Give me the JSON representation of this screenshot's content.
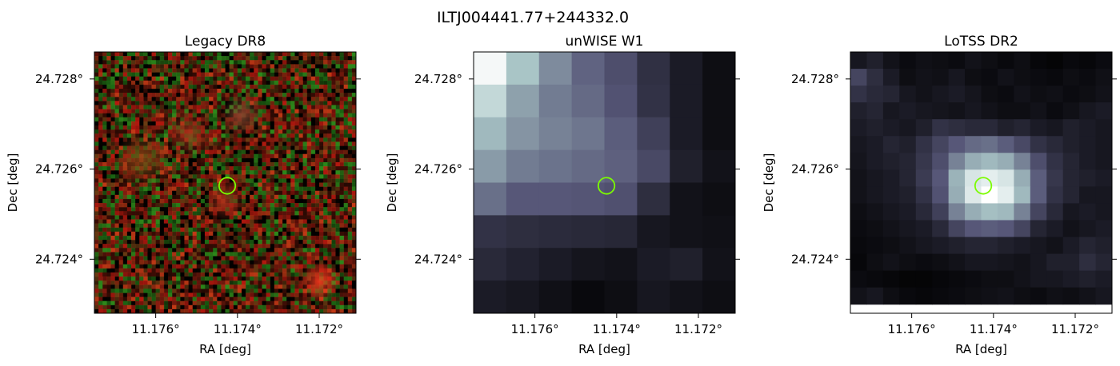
{
  "figure": {
    "suptitle": "ILTJ004441.77+244332.0"
  },
  "chart_data": [
    {
      "type": "heatmap",
      "title": "Legacy DR8",
      "xlabel": "RA [deg]",
      "ylabel": "Dec [deg]",
      "x_ticks": [
        11.176,
        11.174,
        11.172
      ],
      "x_tick_labels": [
        "11.176°",
        "11.174°",
        "11.172°"
      ],
      "y_ticks": [
        24.728,
        24.726,
        24.724
      ],
      "y_tick_labels": [
        "24.728°",
        "24.726°",
        "24.724°"
      ],
      "xlim": [
        11.1775,
        11.1711
      ],
      "ylim": [
        24.7228,
        24.7286
      ],
      "colormap": "rgb composite",
      "image": {
        "kind": "noise",
        "grid": [
          64,
          64
        ],
        "background": "#0a0500",
        "pixel_colors": [
          "#b5190f",
          "#8a1d10",
          "#2e8a1b",
          "#1d6d14",
          "#3f0d05",
          "#000000",
          "#6b3b12",
          "#c43a16"
        ],
        "blobs": [
          {
            "x": 11.1763,
            "y": 24.7262,
            "radius": 0.0007,
            "color": "#8a4a16"
          },
          {
            "x": 11.1752,
            "y": 24.7268,
            "radius": 0.0006,
            "color": "#a3321a"
          },
          {
            "x": 11.1739,
            "y": 24.7272,
            "radius": 0.0005,
            "color": "#8a4a30"
          },
          {
            "x": 11.1743,
            "y": 24.7253,
            "radius": 0.0005,
            "color": "#a3301a"
          },
          {
            "x": 11.172,
            "y": 24.7235,
            "radius": 0.0005,
            "color": "#ff3b1e"
          }
        ]
      },
      "marker": {
        "x": 11.17425,
        "y": 24.72563,
        "radius": 0.0002,
        "color": "#7cfc00"
      }
    },
    {
      "type": "heatmap",
      "title": "unWISE W1",
      "xlabel": "RA [deg]",
      "ylabel": "Dec [deg]",
      "x_ticks": [
        11.176,
        11.174,
        11.172
      ],
      "x_tick_labels": [
        "11.176°",
        "11.174°",
        "11.172°"
      ],
      "y_ticks": [
        24.728,
        24.726,
        24.724
      ],
      "y_tick_labels": [
        "24.728°",
        "24.726°",
        "24.724°"
      ],
      "xlim": [
        11.1775,
        11.1711
      ],
      "ylim": [
        24.7228,
        24.7286
      ],
      "colormap": "bone",
      "image": {
        "kind": "grid",
        "rows": 8,
        "cols": 8,
        "values": [
          [
            0.97,
            0.74,
            0.55,
            0.42,
            0.34,
            0.21,
            0.12,
            0.06
          ],
          [
            0.82,
            0.62,
            0.5,
            0.44,
            0.36,
            0.22,
            0.12,
            0.06
          ],
          [
            0.7,
            0.58,
            0.52,
            0.48,
            0.4,
            0.28,
            0.12,
            0.06
          ],
          [
            0.6,
            0.5,
            0.47,
            0.44,
            0.41,
            0.32,
            0.14,
            0.08
          ],
          [
            0.46,
            0.38,
            0.38,
            0.37,
            0.35,
            0.2,
            0.08,
            0.06
          ],
          [
            0.22,
            0.2,
            0.19,
            0.18,
            0.17,
            0.1,
            0.08,
            0.07
          ],
          [
            0.18,
            0.15,
            0.12,
            0.09,
            0.08,
            0.12,
            0.14,
            0.08
          ],
          [
            0.12,
            0.1,
            0.07,
            0.04,
            0.06,
            0.1,
            0.08,
            0.06
          ]
        ]
      },
      "marker": {
        "x": 11.17425,
        "y": 24.72563,
        "radius": 0.0002,
        "color": "#7cfc00"
      }
    },
    {
      "type": "heatmap",
      "title": "LoTSS DR2",
      "xlabel": "RA [deg]",
      "ylabel": "Dec [deg]",
      "x_ticks": [
        11.176,
        11.174,
        11.172
      ],
      "x_tick_labels": [
        "11.176°",
        "11.174°",
        "11.172°"
      ],
      "y_ticks": [
        24.728,
        24.726,
        24.724
      ],
      "y_tick_labels": [
        "24.728°",
        "24.726°",
        "24.724°"
      ],
      "xlim": [
        11.1775,
        11.1711
      ],
      "ylim": [
        24.7228,
        24.7286
      ],
      "colormap": "bone",
      "image": {
        "kind": "grid",
        "rows": 15,
        "cols": 16,
        "data_extent": {
          "x": [
            11.1775,
            11.1711
          ],
          "y": [
            24.723,
            24.7286
          ]
        },
        "values": [
          [
            0.1,
            0.14,
            0.08,
            0.05,
            0.07,
            0.06,
            0.05,
            0.08,
            0.06,
            0.04,
            0.06,
            0.03,
            0.02,
            0.04,
            0.03,
            0.05
          ],
          [
            0.3,
            0.2,
            0.12,
            0.06,
            0.08,
            0.07,
            0.1,
            0.06,
            0.05,
            0.08,
            0.06,
            0.05,
            0.04,
            0.06,
            0.05,
            0.07
          ],
          [
            0.22,
            0.18,
            0.16,
            0.1,
            0.08,
            0.1,
            0.12,
            0.09,
            0.06,
            0.05,
            0.08,
            0.06,
            0.07,
            0.05,
            0.06,
            0.08
          ],
          [
            0.14,
            0.16,
            0.1,
            0.12,
            0.1,
            0.09,
            0.08,
            0.1,
            0.08,
            0.06,
            0.06,
            0.08,
            0.05,
            0.07,
            0.1,
            0.12
          ],
          [
            0.12,
            0.14,
            0.12,
            0.1,
            0.14,
            0.22,
            0.2,
            0.18,
            0.18,
            0.14,
            0.16,
            0.12,
            0.1,
            0.14,
            0.12,
            0.1
          ],
          [
            0.1,
            0.12,
            0.16,
            0.14,
            0.22,
            0.3,
            0.38,
            0.44,
            0.46,
            0.4,
            0.32,
            0.22,
            0.18,
            0.14,
            0.12,
            0.1
          ],
          [
            0.09,
            0.12,
            0.14,
            0.16,
            0.24,
            0.34,
            0.52,
            0.66,
            0.7,
            0.66,
            0.52,
            0.34,
            0.22,
            0.16,
            0.12,
            0.1
          ],
          [
            0.08,
            0.1,
            0.12,
            0.16,
            0.26,
            0.38,
            0.68,
            0.88,
            0.92,
            0.88,
            0.66,
            0.4,
            0.24,
            0.16,
            0.14,
            0.12
          ],
          [
            0.08,
            0.1,
            0.12,
            0.14,
            0.22,
            0.36,
            0.66,
            0.9,
            1.0,
            0.92,
            0.7,
            0.4,
            0.22,
            0.16,
            0.1,
            0.1
          ],
          [
            0.06,
            0.08,
            0.1,
            0.12,
            0.18,
            0.28,
            0.52,
            0.66,
            0.72,
            0.7,
            0.52,
            0.3,
            0.18,
            0.1,
            0.12,
            0.1
          ],
          [
            0.05,
            0.06,
            0.08,
            0.1,
            0.12,
            0.18,
            0.3,
            0.38,
            0.4,
            0.38,
            0.3,
            0.16,
            0.12,
            0.08,
            0.1,
            0.12
          ],
          [
            0.04,
            0.05,
            0.06,
            0.08,
            0.1,
            0.12,
            0.14,
            0.16,
            0.16,
            0.14,
            0.12,
            0.1,
            0.08,
            0.12,
            0.16,
            0.14
          ],
          [
            0.03,
            0.06,
            0.08,
            0.06,
            0.05,
            0.06,
            0.08,
            0.1,
            0.1,
            0.09,
            0.08,
            0.1,
            0.14,
            0.14,
            0.2,
            0.16
          ],
          [
            0.05,
            0.04,
            0.03,
            0.02,
            0.02,
            0.03,
            0.04,
            0.05,
            0.06,
            0.06,
            0.08,
            0.1,
            0.1,
            0.12,
            0.14,
            0.12
          ],
          [
            0.08,
            0.1,
            0.06,
            0.04,
            0.03,
            0.04,
            0.05,
            0.06,
            0.07,
            0.08,
            0.06,
            0.05,
            0.07,
            0.06,
            0.08,
            0.1
          ]
        ]
      },
      "marker": {
        "x": 11.17425,
        "y": 24.72563,
        "radius": 0.0002,
        "color": "#7cfc00"
      }
    }
  ]
}
